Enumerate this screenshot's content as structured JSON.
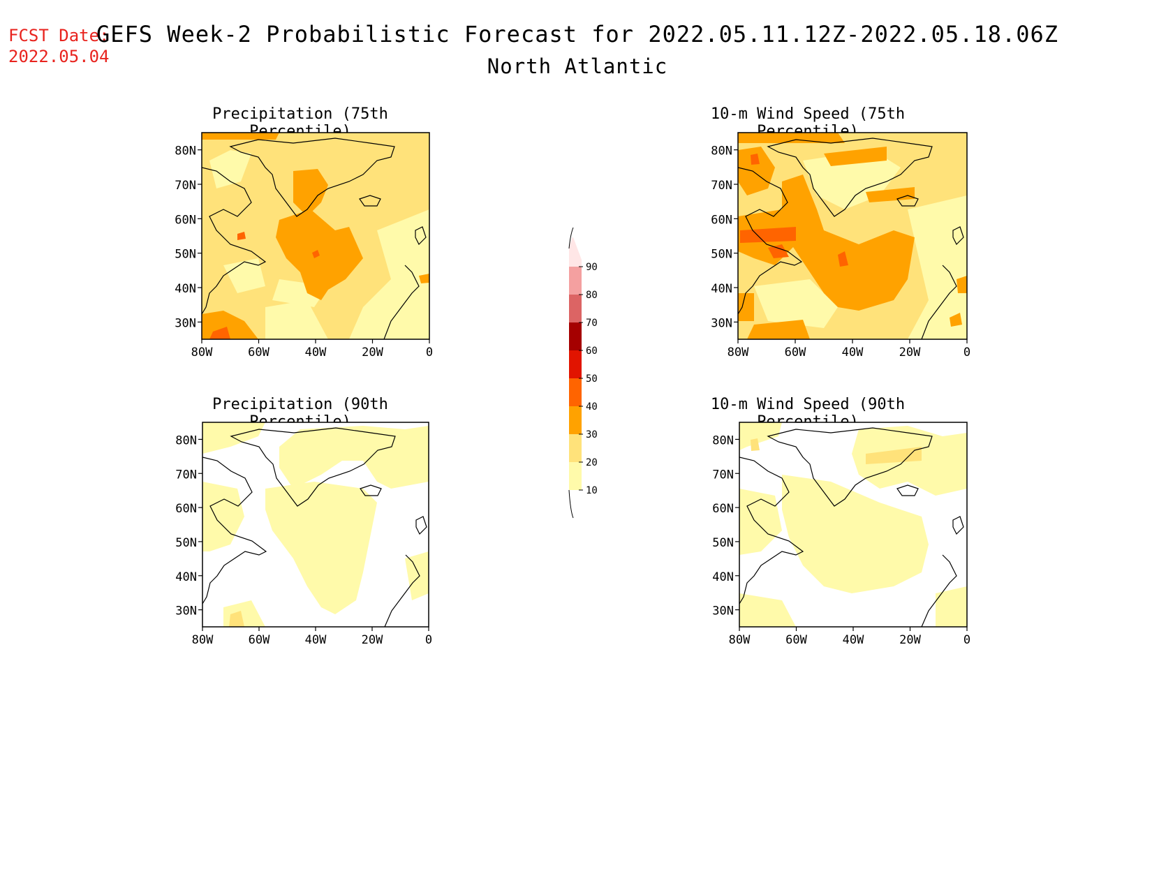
{
  "header": {
    "fcst_label": "FCST Date:",
    "fcst_date": "2022.05.04",
    "title": "GEFS Week-2 Probabilistic Forecast for 2022.05.11.12Z-2022.05.18.06Z",
    "subtitle": "North Atlantic"
  },
  "panels": [
    {
      "title": "Precipitation (75th Percentile)"
    },
    {
      "title": "10-m Wind Speed (75th Percentile)"
    },
    {
      "title": "Precipitation (90th Percentile)"
    },
    {
      "title": "10-m Wind Speed (90th Percentile)"
    }
  ],
  "axes": {
    "lat_labels": [
      "80N",
      "70N",
      "60N",
      "50N",
      "40N",
      "30N"
    ],
    "lat_values": [
      80,
      70,
      60,
      50,
      40,
      30
    ],
    "lon_labels": [
      "80W",
      "60W",
      "40W",
      "20W",
      "0"
    ],
    "lon_values": [
      -80,
      -60,
      -40,
      -20,
      0
    ],
    "lat_range": [
      25,
      85
    ],
    "lon_range": [
      -80,
      0
    ]
  },
  "colorbar": {
    "levels": [
      "10",
      "20",
      "30",
      "40",
      "50",
      "60",
      "70",
      "80",
      "90"
    ],
    "colors": [
      "#fffaaa",
      "#ffe27a",
      "#ffa200",
      "#ff6400",
      "#e11400",
      "#a50000",
      "#dc6464",
      "#f4a0a0",
      "#ffe6e6"
    ]
  }
}
